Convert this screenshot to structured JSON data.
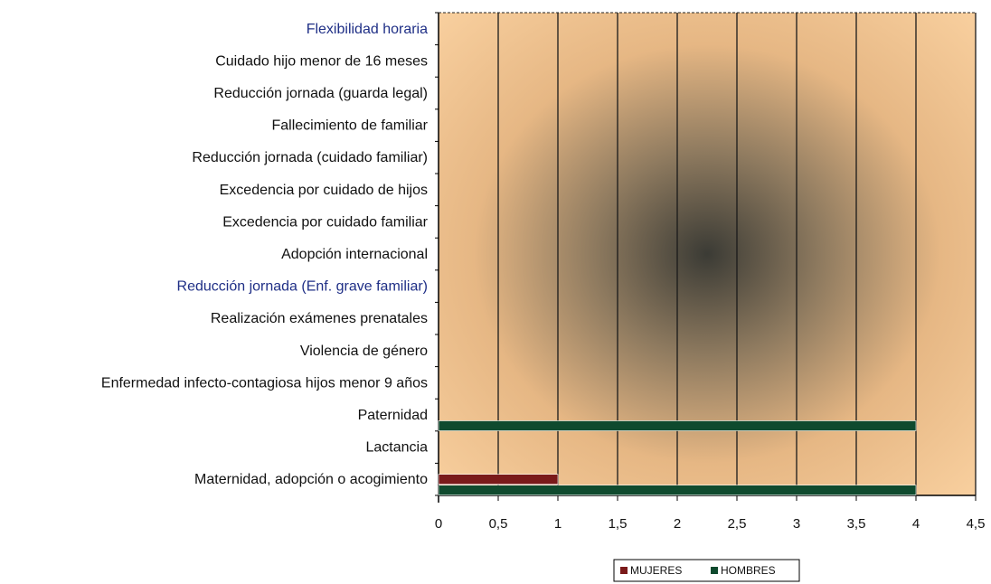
{
  "chart_data": {
    "type": "bar",
    "orientation": "horizontal",
    "categories": [
      "Flexibilidad horaria",
      "Cuidado hijo menor de 16 meses",
      "Reducción jornada (guarda legal)",
      "Fallecimiento de familiar",
      "Reducción jornada (cuidado familiar)",
      "Excedencia por cuidado de hijos",
      "Excedencia por cuidado familiar",
      "Adopción internacional",
      "Reducción jornada (Enf. grave familiar)",
      "Realización exámenes prenatales",
      "Violencia de género",
      "Enfermedad infecto-contagiosa hijos menor 9 años",
      "Paternidad",
      "Lactancia",
      "Maternidad, adopción o acogimiento"
    ],
    "series": [
      {
        "name": "MUJERES",
        "color": "#7a1a1a",
        "values": [
          0,
          0,
          0,
          0,
          0,
          0,
          0,
          0,
          0,
          0,
          0,
          0,
          0,
          0,
          1
        ]
      },
      {
        "name": "HOMBRES",
        "color": "#0f4a2e",
        "values": [
          0,
          0,
          0,
          0,
          0,
          0,
          0,
          0,
          0,
          0,
          0,
          0,
          4,
          0,
          4
        ]
      }
    ],
    "xlim": [
      0,
      4.5
    ],
    "x_ticks": [
      "0",
      "0,5",
      "1",
      "1,5",
      "2",
      "2,5",
      "3",
      "3,5",
      "4",
      "4,5"
    ],
    "highlighted_labels": [
      "Flexibilidad horaria",
      "Reducción jornada (Enf. grave familiar)"
    ],
    "grid": true,
    "legend_position": "bottom",
    "background": "gradient-peach"
  }
}
